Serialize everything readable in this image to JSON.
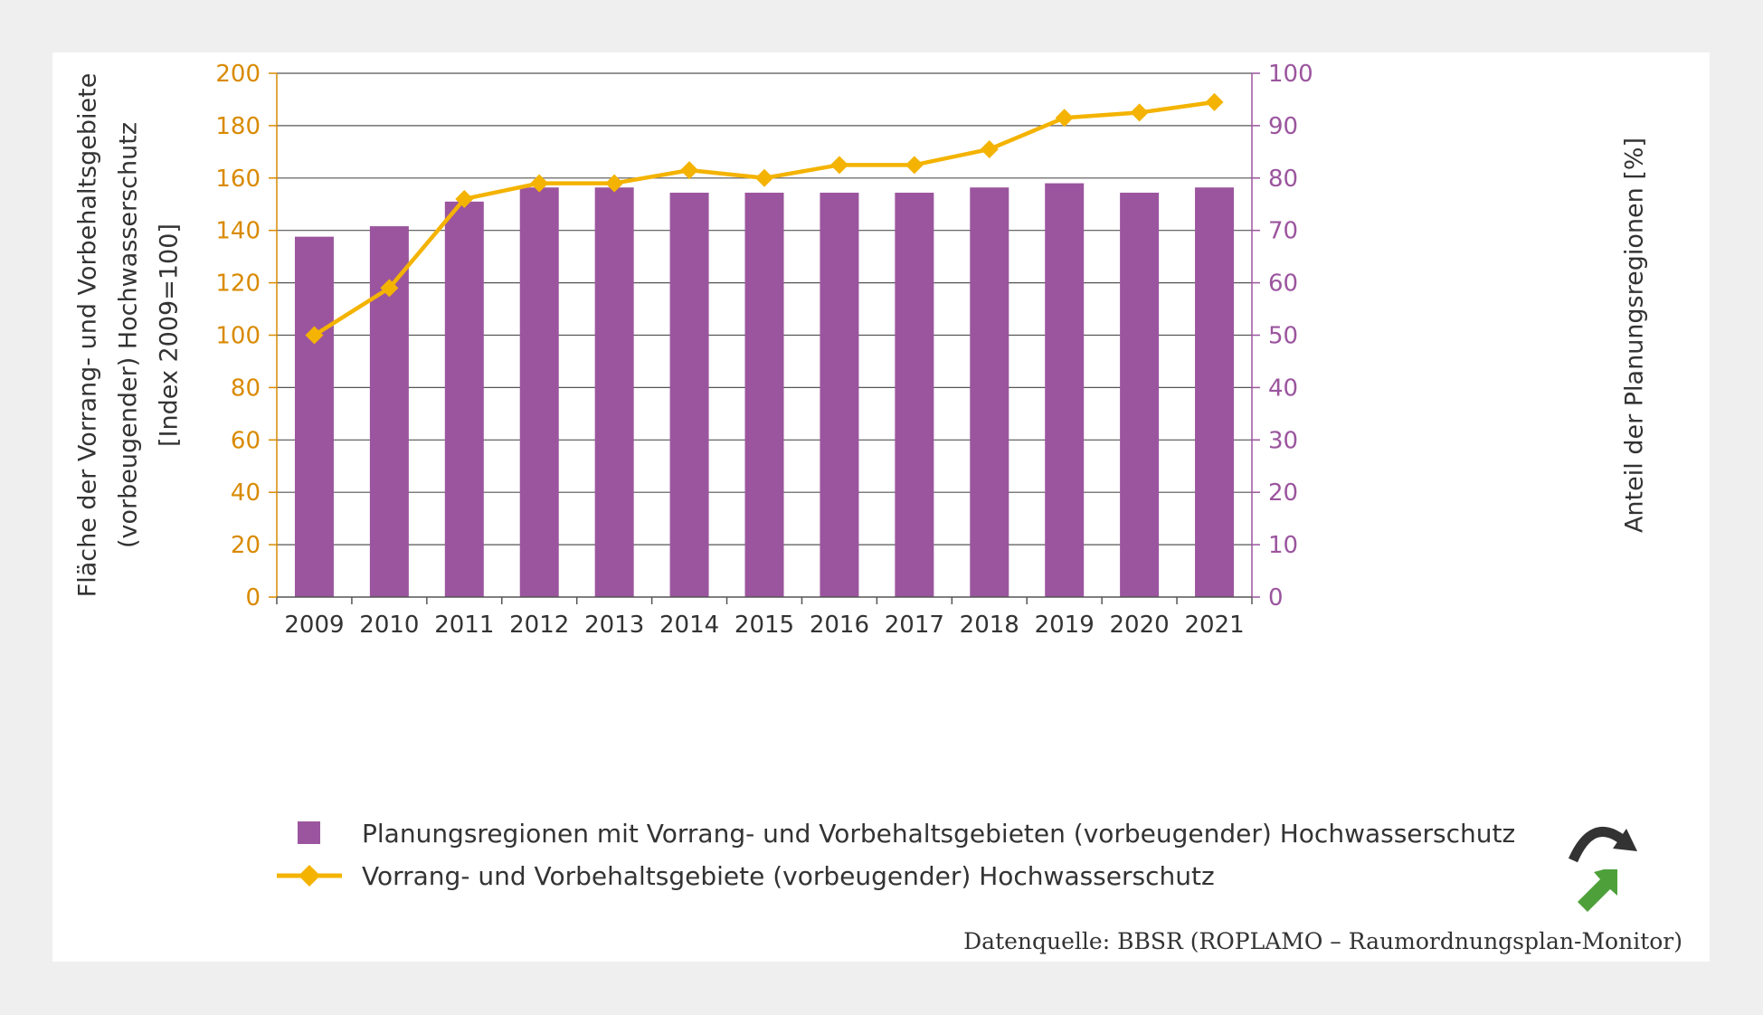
{
  "colors": {
    "bar": "#9b559e",
    "line": "#f4b300",
    "left_axis": "#d98a00",
    "right_axis": "#9b559e",
    "grid": "#555555",
    "icon_dark": "#333333",
    "icon_green": "#4ea13a"
  },
  "chart_data": {
    "type": "bar",
    "categories": [
      "2009",
      "2010",
      "2011",
      "2012",
      "2013",
      "2014",
      "2015",
      "2016",
      "2017",
      "2018",
      "2019",
      "2020",
      "2021"
    ],
    "series": [
      {
        "name": "Planungsregionen mit Vorrang- und Vorbehaltsgebieten (vorbeugender) Hochwasserschutz",
        "type": "bar",
        "axis": "right",
        "values": [
          68.8,
          70.8,
          75.5,
          78.2,
          78.2,
          77.2,
          77.2,
          77.2,
          77.2,
          78.2,
          79.0,
          77.2,
          78.2
        ]
      },
      {
        "name": "Vorrang- und Vorbehaltsgebiete (vorbeugender) Hochwasserschutz",
        "type": "line",
        "axis": "left",
        "values": [
          100,
          118,
          152,
          158,
          158,
          163,
          160,
          165,
          165,
          171,
          183,
          185,
          189
        ]
      }
    ],
    "ylabel_left": "Fläche der Vorrang- und Vorbehaltsgebiete (vorbeugender) Hochwasserschutz [Index 2009=100]",
    "ylabel_left_lines": [
      "Fläche der Vorrang- und Vorbehaltsgebiete",
      "(vorbeugender) Hochwasserschutz",
      "[Index 2009=100]"
    ],
    "ylim_left": [
      0,
      200
    ],
    "yticks_left": [
      "0",
      "20",
      "40",
      "60",
      "80",
      "100",
      "120",
      "140",
      "160",
      "180",
      "200"
    ],
    "ylabel_right": "Anteil der Planungsregionen [%]",
    "ylim_right": [
      0,
      100
    ],
    "yticks_right": [
      "0",
      "10",
      "20",
      "30",
      "40",
      "50",
      "60",
      "70",
      "80",
      "90",
      "100"
    ],
    "grid": true,
    "legend_position": "bottom",
    "source": "Datenquelle: BBSR (ROPLAMO – Raumordnungsplan-Monitor)"
  },
  "icons": [
    "trend-curve-arrow-icon",
    "trend-up-arrow-icon"
  ]
}
